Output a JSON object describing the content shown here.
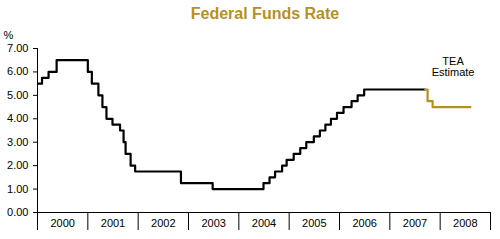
{
  "chart_data": {
    "type": "line",
    "title": "Federal Funds Rate",
    "ylabel": "%",
    "xlim": [
      2000,
      2009
    ],
    "xticks": [
      {
        "value": 2000.5,
        "label": "2000"
      },
      {
        "value": 2001.5,
        "label": "2001"
      },
      {
        "value": 2002.5,
        "label": "2002"
      },
      {
        "value": 2003.5,
        "label": "2003"
      },
      {
        "value": 2004.5,
        "label": "2004"
      },
      {
        "value": 2005.5,
        "label": "2005"
      },
      {
        "value": 2006.5,
        "label": "2006"
      },
      {
        "value": 2007.5,
        "label": "2007"
      },
      {
        "value": 2008.5,
        "label": "2008"
      }
    ],
    "ylim": [
      0,
      7
    ],
    "yticks": [
      {
        "value": 0,
        "label": "0.00"
      },
      {
        "value": 1,
        "label": "1.00"
      },
      {
        "value": 2,
        "label": "2.00"
      },
      {
        "value": 3,
        "label": "3.00"
      },
      {
        "value": 4,
        "label": "4.00"
      },
      {
        "value": 5,
        "label": "5.00"
      },
      {
        "value": 6,
        "label": "6.00"
      },
      {
        "value": 7,
        "label": "7.00"
      }
    ],
    "grid": false,
    "series": [
      {
        "color": "#000000",
        "x": [
          2000.0,
          2000.09,
          2000.22,
          2000.38,
          2001.0,
          2001.08,
          2001.21,
          2001.29,
          2001.37,
          2001.49,
          2001.64,
          2001.71,
          2001.75,
          2001.85,
          2001.94,
          2002.85,
          2003.48,
          2004.49,
          2004.61,
          2004.72,
          2004.86,
          2004.95,
          2005.09,
          2005.22,
          2005.34,
          2005.49,
          2005.61,
          2005.72,
          2005.83,
          2005.95,
          2006.08,
          2006.24,
          2006.36,
          2006.49,
          2007.7
        ],
        "values": [
          5.5,
          5.75,
          6.0,
          6.5,
          6.0,
          5.5,
          5.0,
          4.5,
          4.0,
          3.75,
          3.5,
          3.0,
          2.5,
          2.0,
          1.75,
          1.25,
          1.0,
          1.25,
          1.5,
          1.75,
          2.0,
          2.25,
          2.5,
          2.75,
          3.0,
          3.25,
          3.5,
          3.75,
          4.0,
          4.25,
          4.5,
          4.75,
          5.0,
          5.25,
          5.25
        ]
      },
      {
        "name": "TEA Estimate",
        "color": "#b5911f",
        "x": [
          2007.7,
          2007.75,
          2007.85,
          2008.6
        ],
        "values": [
          5.25,
          4.75,
          4.5,
          4.5
        ]
      }
    ]
  }
}
